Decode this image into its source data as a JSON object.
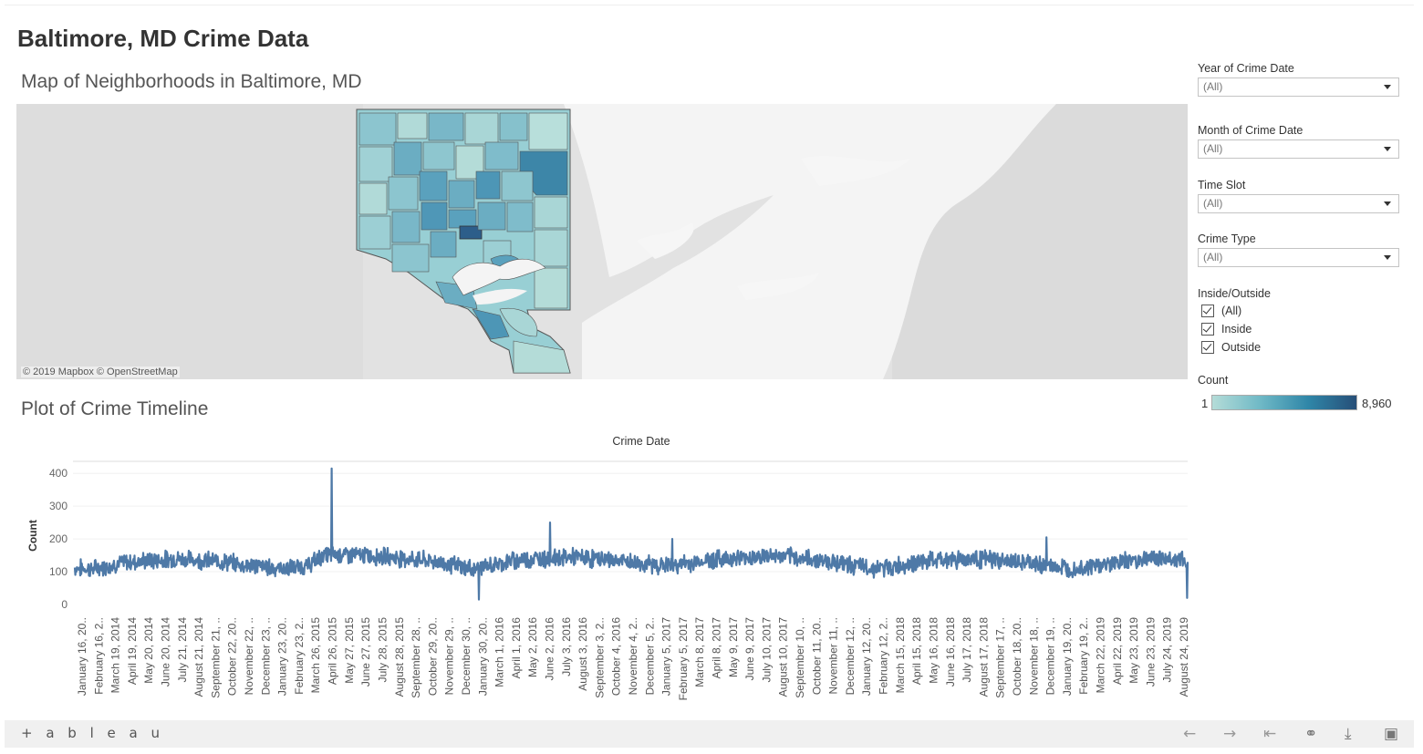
{
  "dashboard": {
    "title": "Baltimore, MD Crime Data"
  },
  "map": {
    "title": "Map of Neighborhoods in Baltimore, MD",
    "attribution": "© 2019 Mapbox  © OpenStreetMap"
  },
  "timeline": {
    "title": "Plot of Crime Timeline"
  },
  "filters": {
    "year": {
      "label": "Year of Crime Date",
      "value": "(All)"
    },
    "month": {
      "label": "Month of Crime Date",
      "value": "(All)"
    },
    "time_slot": {
      "label": "Time Slot",
      "value": "(All)"
    },
    "crime_type": {
      "label": "Crime Type",
      "value": "(All)"
    },
    "inside_outside": {
      "label": "Inside/Outside",
      "options": [
        {
          "label": "(All)",
          "checked": true
        },
        {
          "label": "Inside",
          "checked": true
        },
        {
          "label": "Outside",
          "checked": true
        }
      ]
    }
  },
  "legend": {
    "title": "Count",
    "min": "1",
    "max": "8,960",
    "colors": [
      "#b4dcd8",
      "#6fb9c6",
      "#2f86a8",
      "#274f78"
    ]
  },
  "chart_data": {
    "type": "line",
    "title": "Crime Date",
    "xlabel": "Crime Date",
    "ylabel": "Count",
    "ylim": [
      0,
      420
    ],
    "yticks": [
      0,
      100,
      200,
      300,
      400
    ],
    "color": "#4e79a7",
    "x_tick_labels": [
      "January 16, 20..",
      "February 16, 2..",
      "March 19, 2014",
      "April 19, 2014",
      "May 20, 2014",
      "June 20, 2014",
      "July 21, 2014",
      "August 21, 2014",
      "September 21, ..",
      "October 22, 20..",
      "November 22, ..",
      "December 23, ..",
      "January 23, 20..",
      "February 23, 2..",
      "March 26, 2015",
      "April 26, 2015",
      "May 27, 2015",
      "June 27, 2015",
      "July 28, 2015",
      "August 28, 2015",
      "September 28, ..",
      "October 29, 20..",
      "November 29, ..",
      "December 30, ..",
      "January 30, 20..",
      "March 1, 2016",
      "April 1, 2016",
      "May 2, 2016",
      "June 2, 2016",
      "July 3, 2016",
      "August 3, 2016",
      "September 3, 2..",
      "October 4, 2016",
      "November 4, 2..",
      "December 5, 2..",
      "January 5, 2017",
      "February 5, 2017",
      "March 8, 2017",
      "April 8, 2017",
      "May 9, 2017",
      "June 9, 2017",
      "July 10, 2017",
      "August 10, 2017",
      "September 10, ..",
      "October 11, 20..",
      "November 11, ..",
      "December 12, ..",
      "January 12, 20..",
      "February 12, 2..",
      "March 15, 2018",
      "April 15, 2018",
      "May 16, 2018",
      "June 16, 2018",
      "July 17, 2018",
      "August 17, 2018",
      "September 17, ..",
      "October 18, 20..",
      "November 18, ..",
      "December 19, ..",
      "January 19, 20..",
      "February 19, 2..",
      "March 22, 2019",
      "April 22, 2019",
      "May 23, 2019",
      "June 23, 2019",
      "July 24, 2019",
      "August 24, 2019"
    ],
    "monthly_baseline": [
      112,
      108,
      118,
      128,
      132,
      135,
      140,
      138,
      134,
      130,
      122,
      118,
      112,
      110,
      118,
      150,
      152,
      150,
      148,
      145,
      140,
      135,
      128,
      118,
      108,
      118,
      130,
      138,
      140,
      142,
      145,
      140,
      138,
      132,
      125,
      120,
      120,
      125,
      135,
      140,
      142,
      145,
      148,
      145,
      140,
      135,
      128,
      118,
      110,
      112,
      122,
      130,
      135,
      138,
      140,
      138,
      132,
      128,
      122,
      115,
      110,
      115,
      122,
      130,
      138,
      142,
      140,
      130
    ],
    "spikes": [
      {
        "date": "April 27, 2015",
        "value": 415
      },
      {
        "date": "June 1, 2016",
        "value": 250
      },
      {
        "date": "January 20, 2017",
        "value": 200
      },
      {
        "date": "December 10, 2018",
        "value": 205
      },
      {
        "date": "January 1, 2016",
        "value": 15
      },
      {
        "date": "September 1, 2019",
        "value": 20
      }
    ]
  },
  "toolbar": {
    "logo": "+ a b l e a u",
    "icons": [
      "undo-icon",
      "redo-icon",
      "revert-icon",
      "share-icon",
      "download-icon",
      "fullscreen-icon"
    ]
  }
}
